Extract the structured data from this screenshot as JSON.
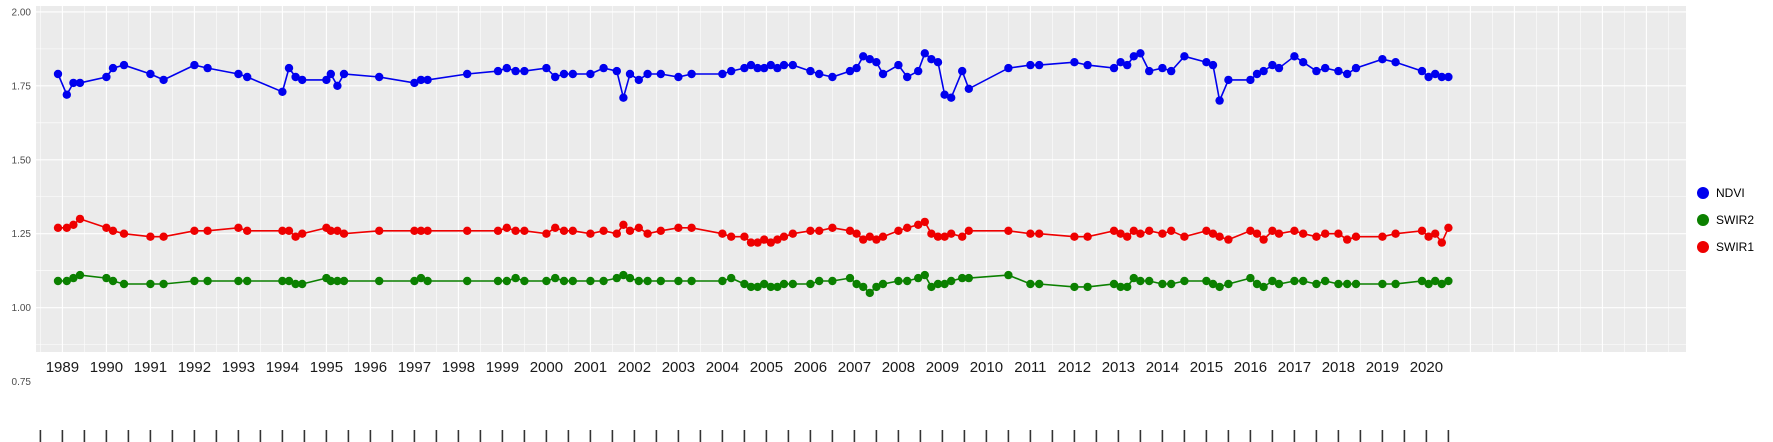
{
  "chart": {
    "background": "#FFFFFF",
    "panel_color": "#EBEBEB",
    "grid_major_color": "#FFFFFF",
    "grid_minor_color": "#F5F5F5",
    "y_axis_text_color": "#4D4D4D",
    "x_axis_text_color": "#1A1A1A",
    "tick_color": "#333333"
  },
  "legend": {
    "position": "right",
    "items": [
      {
        "label": "NDVI",
        "color": "#0000EE"
      },
      {
        "label": "SWIR2",
        "color": "#0B8000"
      },
      {
        "label": "SWIR1",
        "color": "#EE0000"
      }
    ]
  },
  "chart_data": {
    "type": "scatter",
    "title": "",
    "xlabel": "",
    "ylabel": "",
    "grid": true,
    "legend_position": "right",
    "xlim": [
      1988.4,
      2025.9
    ],
    "ylim": [
      0.85,
      2.02
    ],
    "x_ticks": [
      1989,
      1990,
      1991,
      1992,
      1993,
      1994,
      1995,
      1996,
      1997,
      1998,
      1999,
      2000,
      2001,
      2002,
      2003,
      2004,
      2005,
      2006,
      2007,
      2008,
      2009,
      2010,
      2011,
      2012,
      2013,
      2014,
      2015,
      2016,
      2017,
      2018,
      2019,
      2020
    ],
    "y_ticks": [
      2.0,
      1.75,
      1.5,
      1.25,
      1.0,
      0.75
    ],
    "y_tick_labels": [
      "2.00",
      "1.75",
      "1.50",
      "1.25",
      "1.00",
      "0.75"
    ],
    "y_grid_major": [
      1.0,
      1.25,
      1.5,
      1.75,
      2.0
    ],
    "y_grid_minor": [
      0.875,
      1.125,
      1.375,
      1.625,
      1.875
    ],
    "x": [
      1988.9,
      1989.1,
      1989.25,
      1989.4,
      1990.0,
      1990.15,
      1990.4,
      1991.0,
      1991.3,
      1992.0,
      1992.3,
      1993.0,
      1993.2,
      1994.0,
      1994.15,
      1994.3,
      1994.45,
      1995.0,
      1995.1,
      1995.25,
      1995.4,
      1996.2,
      1997.0,
      1997.15,
      1997.3,
      1998.2,
      1998.9,
      1999.1,
      1999.3,
      1999.5,
      2000.0,
      2000.2,
      2000.4,
      2000.6,
      2001.0,
      2001.3,
      2001.6,
      2001.75,
      2001.9,
      2002.1,
      2002.3,
      2002.6,
      2003.0,
      2003.3,
      2004.0,
      2004.2,
      2004.5,
      2004.65,
      2004.8,
      2004.95,
      2005.1,
      2005.25,
      2005.4,
      2005.6,
      2006.0,
      2006.2,
      2006.5,
      2006.9,
      2007.05,
      2007.2,
      2007.35,
      2007.5,
      2007.65,
      2008.0,
      2008.2,
      2008.45,
      2008.6,
      2008.75,
      2008.9,
      2009.05,
      2009.2,
      2009.45,
      2009.6,
      2010.5,
      2011.0,
      2011.2,
      2012.0,
      2012.3,
      2012.9,
      2013.05,
      2013.2,
      2013.35,
      2013.5,
      2013.7,
      2014.0,
      2014.2,
      2014.5,
      2015.0,
      2015.15,
      2015.3,
      2015.5,
      2016.0,
      2016.15,
      2016.3,
      2016.5,
      2016.65,
      2017.0,
      2017.2,
      2017.5,
      2017.7,
      2018.0,
      2018.2,
      2018.4,
      2019.0,
      2019.3,
      2019.9,
      2020.05,
      2020.2,
      2020.35,
      2020.5
    ],
    "series": [
      {
        "name": "NDVI",
        "color": "#0000EE",
        "values": [
          1.79,
          1.72,
          1.76,
          1.76,
          1.78,
          1.81,
          1.82,
          1.79,
          1.77,
          1.82,
          1.81,
          1.79,
          1.78,
          1.73,
          1.81,
          1.78,
          1.77,
          1.77,
          1.79,
          1.75,
          1.79,
          1.78,
          1.76,
          1.77,
          1.77,
          1.79,
          1.8,
          1.81,
          1.8,
          1.8,
          1.81,
          1.78,
          1.79,
          1.79,
          1.79,
          1.81,
          1.8,
          1.71,
          1.79,
          1.77,
          1.79,
          1.79,
          1.78,
          1.79,
          1.79,
          1.8,
          1.81,
          1.82,
          1.81,
          1.81,
          1.82,
          1.81,
          1.82,
          1.82,
          1.8,
          1.79,
          1.78,
          1.8,
          1.81,
          1.85,
          1.84,
          1.83,
          1.79,
          1.82,
          1.78,
          1.8,
          1.86,
          1.84,
          1.83,
          1.72,
          1.71,
          1.8,
          1.74,
          1.81,
          1.82,
          1.82,
          1.83,
          1.82,
          1.81,
          1.83,
          1.82,
          1.85,
          1.86,
          1.8,
          1.81,
          1.8,
          1.85,
          1.83,
          1.82,
          1.7,
          1.77,
          1.77,
          1.79,
          1.8,
          1.82,
          1.81,
          1.85,
          1.83,
          1.8,
          1.81,
          1.8,
          1.79,
          1.81,
          1.84,
          1.83,
          1.8,
          1.78,
          1.79,
          1.78,
          1.78
        ]
      },
      {
        "name": "SWIR2",
        "color": "#0B8000",
        "values": [
          1.09,
          1.09,
          1.1,
          1.11,
          1.1,
          1.09,
          1.08,
          1.08,
          1.08,
          1.09,
          1.09,
          1.09,
          1.09,
          1.09,
          1.09,
          1.08,
          1.08,
          1.1,
          1.09,
          1.09,
          1.09,
          1.09,
          1.09,
          1.1,
          1.09,
          1.09,
          1.09,
          1.09,
          1.1,
          1.09,
          1.09,
          1.1,
          1.09,
          1.09,
          1.09,
          1.09,
          1.1,
          1.11,
          1.1,
          1.09,
          1.09,
          1.09,
          1.09,
          1.09,
          1.09,
          1.1,
          1.08,
          1.07,
          1.07,
          1.08,
          1.07,
          1.07,
          1.08,
          1.08,
          1.08,
          1.09,
          1.09,
          1.1,
          1.08,
          1.07,
          1.05,
          1.07,
          1.08,
          1.09,
          1.09,
          1.1,
          1.11,
          1.07,
          1.08,
          1.08,
          1.09,
          1.1,
          1.1,
          1.11,
          1.08,
          1.08,
          1.07,
          1.07,
          1.08,
          1.07,
          1.07,
          1.1,
          1.09,
          1.09,
          1.08,
          1.08,
          1.09,
          1.09,
          1.08,
          1.07,
          1.08,
          1.1,
          1.08,
          1.07,
          1.09,
          1.08,
          1.09,
          1.09,
          1.08,
          1.09,
          1.08,
          1.08,
          1.08,
          1.08,
          1.08,
          1.09,
          1.08,
          1.09,
          1.08,
          1.09
        ]
      },
      {
        "name": "SWIR1",
        "color": "#EE0000",
        "values": [
          1.27,
          1.27,
          1.28,
          1.3,
          1.27,
          1.26,
          1.25,
          1.24,
          1.24,
          1.26,
          1.26,
          1.27,
          1.26,
          1.26,
          1.26,
          1.24,
          1.25,
          1.27,
          1.26,
          1.26,
          1.25,
          1.26,
          1.26,
          1.26,
          1.26,
          1.26,
          1.26,
          1.27,
          1.26,
          1.26,
          1.25,
          1.27,
          1.26,
          1.26,
          1.25,
          1.26,
          1.25,
          1.28,
          1.26,
          1.27,
          1.25,
          1.26,
          1.27,
          1.27,
          1.25,
          1.24,
          1.24,
          1.22,
          1.22,
          1.23,
          1.22,
          1.23,
          1.24,
          1.25,
          1.26,
          1.26,
          1.27,
          1.26,
          1.25,
          1.23,
          1.24,
          1.23,
          1.24,
          1.26,
          1.27,
          1.28,
          1.29,
          1.25,
          1.24,
          1.24,
          1.25,
          1.24,
          1.26,
          1.26,
          1.25,
          1.25,
          1.24,
          1.24,
          1.26,
          1.25,
          1.24,
          1.26,
          1.25,
          1.26,
          1.25,
          1.26,
          1.24,
          1.26,
          1.25,
          1.24,
          1.23,
          1.26,
          1.25,
          1.23,
          1.26,
          1.25,
          1.26,
          1.25,
          1.24,
          1.25,
          1.25,
          1.23,
          1.24,
          1.24,
          1.25,
          1.26,
          1.24,
          1.25,
          1.22,
          1.27
        ]
      }
    ]
  }
}
